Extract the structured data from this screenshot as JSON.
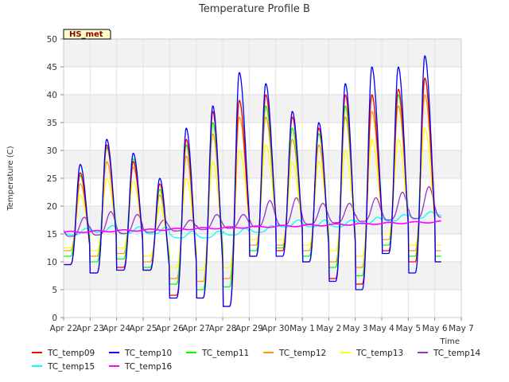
{
  "chart_data": {
    "type": "line",
    "title": "Temperature Profile B",
    "xlabel": "Time",
    "ylabel": "Temperature (C)",
    "site_label": "HS_met",
    "ylim": [
      0,
      50
    ],
    "yticks": [
      0,
      5,
      10,
      15,
      20,
      25,
      30,
      35,
      40,
      45,
      50
    ],
    "xlim": [
      "2023-04-22",
      "2023-05-07"
    ],
    "xtick_labels": [
      "Apr 22",
      "Apr 23",
      "Apr 24",
      "Apr 25",
      "Apr 26",
      "Apr 27",
      "Apr 28",
      "Apr 29",
      "Apr 30",
      "May 1",
      "May 2",
      "May 3",
      "May 4",
      "May 5",
      "May 6",
      "May 7"
    ],
    "grid": true,
    "legend_position": "bottom",
    "days": [
      "Apr 22",
      "Apr 23",
      "Apr 24",
      "Apr 25",
      "Apr 26",
      "Apr 27",
      "Apr 28",
      "Apr 29",
      "Apr 30",
      "May 1",
      "May 2",
      "May 3",
      "May 4",
      "May 5",
      "May 6"
    ],
    "series": [
      {
        "name": "TC_temp09",
        "color": "#ff0000",
        "daily_max": [
          26,
          31,
          28,
          24,
          32,
          37,
          39,
          40,
          36,
          34,
          40,
          40,
          41,
          43,
          null
        ],
        "daily_min": [
          9.5,
          8,
          9,
          8.5,
          4,
          3.5,
          2,
          11,
          12,
          10,
          7,
          6,
          12,
          10,
          10
        ]
      },
      {
        "name": "TC_temp10",
        "color": "#0000ff",
        "daily_max": [
          27.5,
          32,
          29.5,
          25,
          34,
          38,
          44,
          42,
          37,
          35,
          42,
          45,
          45,
          47,
          null
        ],
        "daily_min": [
          9.5,
          8,
          8.5,
          8.5,
          3.5,
          3.5,
          2,
          11,
          11,
          10,
          6.5,
          5,
          11.5,
          8,
          10
        ]
      },
      {
        "name": "TC_temp11",
        "color": "#00ff00",
        "daily_max": [
          25.5,
          30.5,
          28.5,
          23,
          31,
          35,
          39,
          38,
          34,
          33,
          38,
          40,
          40,
          43,
          null
        ],
        "daily_min": [
          11,
          10,
          10.5,
          9,
          6,
          5,
          5.5,
          12,
          12.5,
          11,
          9,
          7.5,
          13,
          11,
          11
        ]
      },
      {
        "name": "TC_temp12",
        "color": "#ff9900",
        "daily_max": [
          24,
          28,
          27,
          22,
          29,
          33,
          36,
          36,
          32,
          31,
          36,
          37,
          38,
          40,
          null
        ],
        "daily_min": [
          12,
          11,
          11.5,
          10,
          7,
          6.5,
          7,
          13,
          13,
          12,
          10,
          9,
          14,
          12,
          12
        ]
      },
      {
        "name": "TC_temp13",
        "color": "#ffff00",
        "daily_max": [
          22,
          25,
          24.5,
          20,
          25,
          28,
          30,
          31,
          28,
          28,
          30,
          32,
          32,
          34,
          null
        ],
        "daily_min": [
          12.5,
          12,
          12.5,
          11,
          9,
          8.5,
          9,
          14,
          14,
          13,
          12,
          11,
          15,
          13,
          13
        ]
      },
      {
        "name": "TC_temp14",
        "color": "#9933cc",
        "daily_max": [
          18,
          19,
          18.5,
          17.5,
          17.5,
          18.5,
          18.5,
          21,
          21.5,
          20.5,
          20.5,
          21.5,
          22.5,
          23.5,
          24
        ]
      },
      {
        "name": "TC_temp15",
        "color": "#00ffff",
        "daily_max": [
          16,
          16.5,
          16.3,
          16.2,
          15.5,
          15.5,
          16,
          16.5,
          17.5,
          17.5,
          17.5,
          18,
          18.5,
          19,
          19.5
        ]
      },
      {
        "name": "TC_temp16",
        "color": "#ff00ff",
        "trend_start": 15.3,
        "trend_end": 17.2
      }
    ]
  }
}
